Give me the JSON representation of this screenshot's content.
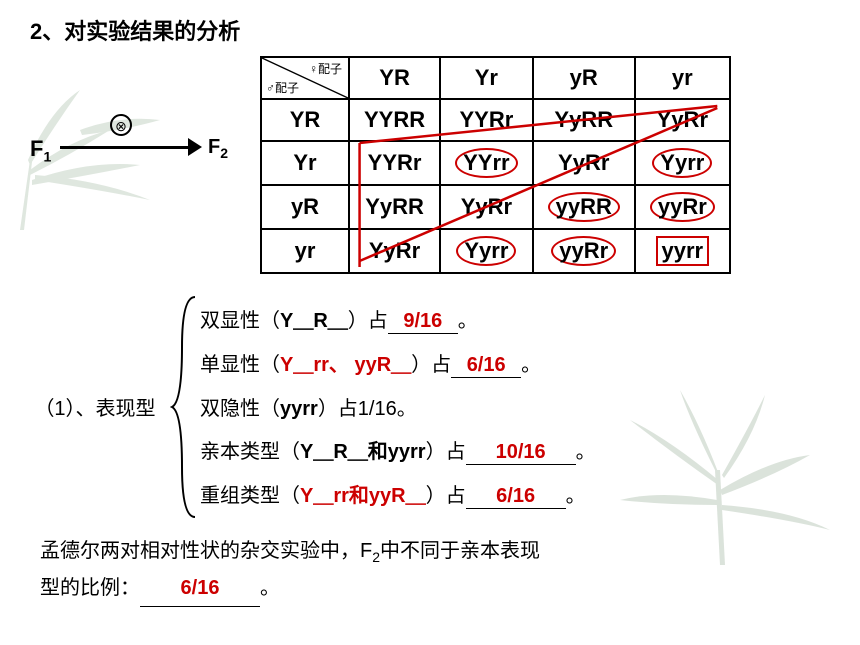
{
  "title": "2、对实验结果的分析",
  "cross": {
    "f1": "F",
    "f1sub": "1",
    "f2": "F",
    "f2sub": "2",
    "symbol": "⊗"
  },
  "punnett": {
    "female": "♀配子",
    "male": "♂配子",
    "cols": [
      "YR",
      "Yr",
      "yR",
      "yr"
    ],
    "rows": [
      "YR",
      "Yr",
      "yR",
      "yr"
    ],
    "cells": [
      [
        "YYRR",
        "YYRr",
        "YyRR",
        "YyRr"
      ],
      [
        "YYRr",
        "YYrr",
        "YyRr",
        "Yyrr"
      ],
      [
        "YyRR",
        "YyRr",
        "yyRR",
        "yyRr"
      ],
      [
        "YyRr",
        "Yyrr",
        "yyRr",
        "yyrr"
      ]
    ],
    "red_circles": [
      [
        1,
        1
      ],
      [
        1,
        3
      ],
      [
        2,
        2
      ],
      [
        2,
        3
      ],
      [
        3,
        1
      ],
      [
        3,
        2
      ]
    ],
    "red_box": [
      3,
      3
    ]
  },
  "phenotype": {
    "label": "（1）、表现型",
    "lines": {
      "l1_pre": "双显性（",
      "l1_geno": "Y＿R＿",
      "l1_post": "）占",
      "l1_val": "9/16",
      "l2_pre": "单显性（",
      "l2_geno": "Y＿rr、 yyR＿",
      "l2_post": "）占",
      "l2_val": "6/16",
      "l3_pre": "双隐性（",
      "l3_geno": "yyrr",
      "l3_post": "）占1/16。",
      "l4_pre": "亲本类型（",
      "l4_geno": "Y＿R＿和yyrr",
      "l4_post": "）占",
      "l4_val": "10/16",
      "l5_pre": "重组类型（",
      "l5_geno": "Y＿rr和yyR＿",
      "l5_post": "）占",
      "l5_val": "6/16"
    }
  },
  "bottom": {
    "line1": "孟德尔两对相对性状的杂交实验中，F",
    "sub": "2",
    "line1b": "中不同于亲本表现",
    "line2": "型的比例：",
    "val": "6/16"
  },
  "period": "。",
  "colors": {
    "red": "#cc0000",
    "leaf": "#7a9b7a"
  }
}
